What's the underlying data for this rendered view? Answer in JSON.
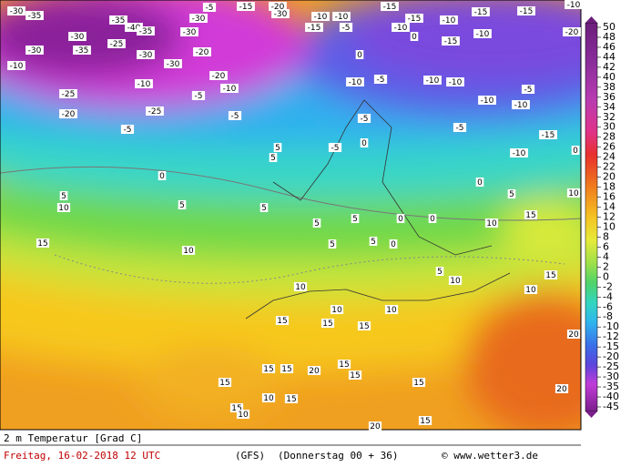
{
  "footer": {
    "variable": "2 m Temperatur [Grad C]",
    "date": "Freitag, 16-02-2018  12 UTC",
    "model": "(GFS)",
    "step": "(Donnerstag 00 + 36)",
    "source": "© www.wetter3.de"
  },
  "colorbar": {
    "labels": [
      50,
      48,
      46,
      44,
      42,
      40,
      38,
      36,
      34,
      32,
      30,
      28,
      26,
      24,
      22,
      20,
      18,
      16,
      14,
      12,
      10,
      8,
      6,
      4,
      2,
      0,
      -2,
      -4,
      -6,
      -8,
      -10,
      -12,
      -15,
      -20,
      -25,
      -30,
      -35,
      -40,
      -45
    ]
  },
  "contour_labels": [
    -30,
    -35,
    -35,
    -40,
    -35,
    -30,
    -30,
    -5,
    -15,
    -20,
    -30,
    -10,
    -10,
    -15,
    -5,
    -15,
    -15,
    -10,
    -15,
    -15,
    -10,
    -10,
    -10,
    -15,
    -20,
    -30,
    -30,
    -35,
    -25,
    -30,
    -20,
    -30,
    -10,
    -10,
    -20,
    -10,
    -5,
    -25,
    -20,
    -25,
    -5,
    -10,
    -5,
    -10,
    -10,
    -5,
    -10,
    -10,
    -5,
    -5,
    -10,
    -5,
    -15,
    -5,
    0,
    0,
    0,
    0,
    5,
    5,
    0,
    0,
    5,
    10,
    5,
    5,
    5,
    5,
    0,
    0,
    5,
    10,
    15,
    10,
    15,
    10,
    5,
    5,
    0,
    5,
    10,
    10,
    10,
    10,
    15,
    15,
    15,
    15,
    10,
    20,
    15,
    15,
    15,
    15,
    20,
    15,
    15,
    20,
    10,
    15,
    15,
    10,
    20,
    15
  ]
}
